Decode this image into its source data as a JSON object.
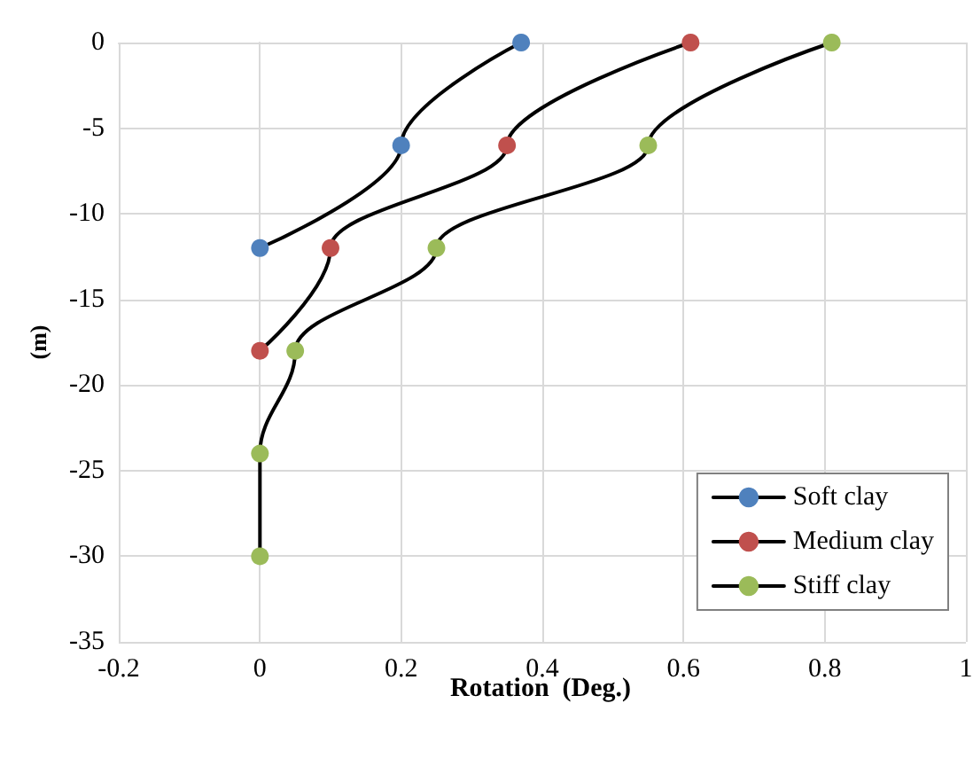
{
  "chart_data": {
    "type": "line",
    "xlabel": "Rotation  (Deg.)",
    "ylabel": "(m)",
    "xlim": [
      -0.2,
      1
    ],
    "xticks": [
      -0.2,
      0,
      0.2,
      0.4,
      0.6,
      0.8,
      1
    ],
    "ylim": [
      -35,
      0
    ],
    "yticks": [
      0,
      -5,
      -10,
      -15,
      -20,
      -25,
      -30,
      -35
    ],
    "grid": true,
    "legend": "bottom right",
    "marker": "circle",
    "line_style": "solid",
    "series": [
      {
        "name": "Soft clay",
        "color": "#4f81bd",
        "x": [
          0.37,
          0.2,
          0,
          null,
          null,
          null
        ],
        "values": [
          0,
          -6,
          -12,
          null,
          null,
          null
        ]
      },
      {
        "name": "Medium clay",
        "color": "#c0504d",
        "x": [
          0.61,
          0.35,
          0.1,
          0,
          null,
          null
        ],
        "values": [
          0,
          -6,
          -12,
          -18,
          null,
          null
        ]
      },
      {
        "name": "Stiff clay",
        "color": "#9bbb59",
        "x": [
          0.81,
          0.55,
          0.25,
          0.05,
          0,
          0
        ],
        "values": [
          0,
          -6,
          -12,
          -18,
          -24,
          -30
        ]
      }
    ]
  }
}
